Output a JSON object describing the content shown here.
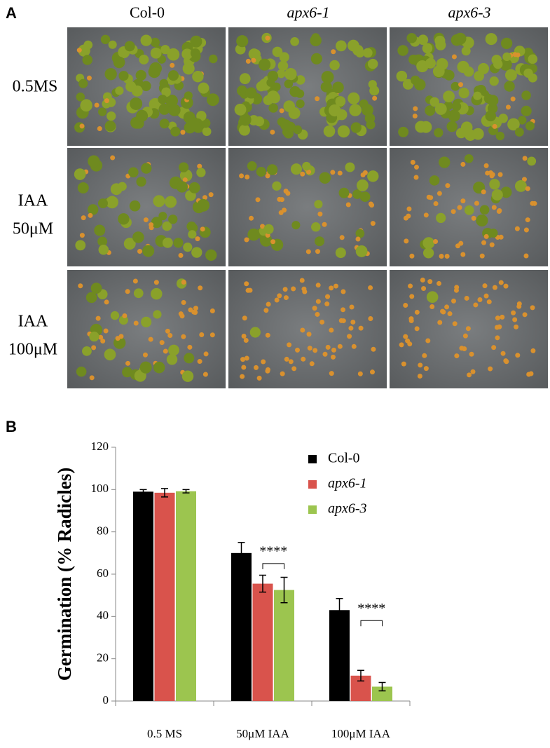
{
  "panel_a": {
    "label": "A",
    "columns": [
      "Col-0",
      "apx6-1",
      "apx6-3"
    ],
    "rows": [
      [
        "0.5MS"
      ],
      [
        "IAA",
        "50μM"
      ],
      [
        "IAA",
        "100μM"
      ]
    ]
  },
  "chart_data": {
    "type": "bar",
    "panel_label": "B",
    "y_label": "Germination (% Radicles)",
    "categories": [
      "0.5 MS",
      "50μM IAA",
      "100μM IAA"
    ],
    "series": [
      {
        "name": "Col-0",
        "color": "#000000",
        "values": [
          99,
          70,
          43
        ],
        "errors": [
          1,
          5,
          5.5
        ]
      },
      {
        "name": "apx6-1",
        "color": "#d9534c",
        "values": [
          98.5,
          55.5,
          12
        ],
        "errors": [
          2,
          4,
          2.5
        ]
      },
      {
        "name": "apx6-3",
        "color": "#9cc54f",
        "values": [
          99.2,
          52.5,
          6.8
        ],
        "errors": [
          0.8,
          6,
          2
        ]
      }
    ],
    "annotations": [
      {
        "text": "****",
        "category": "50μM IAA"
      },
      {
        "text": "****",
        "category": "100μM IAA"
      }
    ],
    "ylim": [
      0,
      120
    ],
    "yticks": [
      0,
      20,
      40,
      60,
      80,
      100,
      120
    ],
    "legend": "upper right"
  }
}
